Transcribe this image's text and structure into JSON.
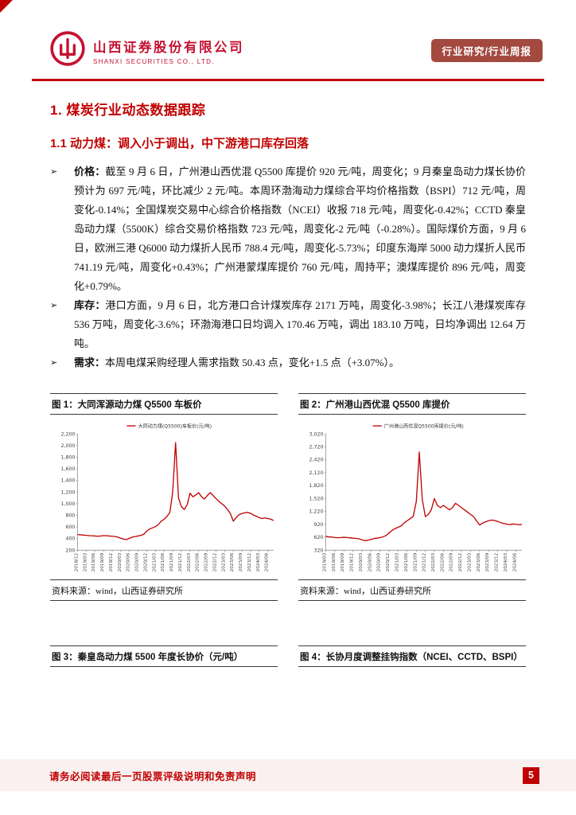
{
  "header": {
    "company_cn": "山西证券股份有限公司",
    "company_en": "SHANXI SECURITIES CO., LTD.",
    "badge": "行业研究/行业周报"
  },
  "section": {
    "title": "1. 煤炭行业动态数据跟踪",
    "subtitle": "1.1 动力煤：调入小于调出，中下游港口库存回落"
  },
  "bullets": [
    {
      "label": "价格：",
      "text": "截至 9 月 6 日，广州港山西优混 Q5500 库提价 920 元/吨，周变化；9 月秦皇岛动力煤长协价预计为 697 元/吨，环比减少 2 元/吨。本周环渤海动力煤综合平均价格指数（BSPI）712 元/吨，周变化-0.14%；全国煤炭交易中心综合价格指数（NCEI）收报 718 元/吨，周变化-0.42%；CCTD 秦皇岛动力煤（5500K）综合交易价格指数 723 元/吨，周变化-2 元/吨（-0.28%）。国际煤价方面，9 月 6 日，欧洲三港 Q6000 动力煤折人民币 788.4 元/吨，周变化-5.73%；印度东海岸 5000 动力煤折人民币 741.19 元/吨，周变化+0.43%；广州港蒙煤库提价 760 元/吨，周持平；澳煤库提价 896 元/吨，周变化+0.79%。"
    },
    {
      "label": "库存：",
      "text": "港口方面，9 月 6 日，北方港口合计煤炭库存 2171 万吨，周变化-3.98%；长江八港煤炭库存 536 万吨，周变化-3.6%；环渤海港口日均调入 170.46 万吨，调出 183.10 万吨，日均净调出 12.64 万吨。"
    },
    {
      "label": "需求：",
      "text": "本周电煤采购经理人需求指数 50.43 点，变化+1.5 点（+3.07%）。"
    }
  ],
  "figures": {
    "fig1_title": "图 1：大同浑源动力煤 Q5500 车板价",
    "fig2_title": "图 2：广州港山西优混 Q5500 库提价",
    "fig3_title": "图 3：秦皇岛动力煤 5500 年度长协价（元/吨）",
    "fig4_title": "图 4：长协月度调整挂钩指数（NCEI、CCTD、BSPI）",
    "source": "资料来源：wind，山西证券研究所"
  },
  "footer": {
    "disclaimer": "请务必阅读最后一页股票评级说明和免责声明",
    "page_number": "5"
  },
  "colors": {
    "brand_red": "#C00000",
    "logo_red": "#C41230",
    "badge_bg": "#A3493F",
    "line_red": "#C00000",
    "footer_band": "#FAF0F0"
  },
  "chart_data": [
    {
      "type": "line",
      "title": "图 1：大同浑源动力煤 Q5500 车板价",
      "legend": "大同动力煤(Q5500)车板价(元/吨)",
      "ylabel": "元/吨",
      "ylim": [
        200,
        2200
      ],
      "yticks": [
        200,
        400,
        600,
        800,
        1000,
        1200,
        1400,
        1600,
        1800,
        2000,
        2200
      ],
      "tick_step": 3,
      "x_tick_labels": [
        "2018/12",
        "2019/03",
        "2019/06",
        "2019/09",
        "2019/12",
        "2020/03",
        "2020/06",
        "2020/09",
        "2020/12",
        "2021/03",
        "2021/06",
        "2021/09",
        "2021/12",
        "2022/03",
        "2022/06",
        "2022/09",
        "2022/12",
        "2023/03",
        "2023/06",
        "2023/09",
        "2023/12",
        "2024/03",
        "2024/06"
      ],
      "values": [
        470,
        465,
        460,
        455,
        450,
        448,
        445,
        440,
        445,
        450,
        448,
        445,
        440,
        435,
        425,
        405,
        390,
        385,
        405,
        425,
        435,
        445,
        455,
        475,
        530,
        565,
        585,
        605,
        640,
        700,
        730,
        780,
        850,
        1200,
        2050,
        1100,
        950,
        900,
        980,
        1180,
        1120,
        1150,
        1190,
        1120,
        1080,
        1140,
        1190,
        1140,
        1090,
        1040,
        1000,
        960,
        900,
        830,
        700,
        760,
        810,
        830,
        845,
        850,
        835,
        805,
        785,
        760,
        745,
        755,
        745,
        735,
        710
      ]
    },
    {
      "type": "line",
      "title": "图 2：广州港山西优混 Q5500 库提价",
      "legend": "广州港山西优混Q5500库提价(元/吨)",
      "ylabel": "元/吨",
      "ylim": [
        320,
        3020
      ],
      "yticks": [
        320,
        620,
        920,
        1220,
        1520,
        1820,
        2120,
        2420,
        2720,
        3020
      ],
      "tick_step": 3,
      "x_tick_labels": [
        "2019/03",
        "2019/06",
        "2019/09",
        "2019/12",
        "2020/03",
        "2020/06",
        "2020/09",
        "2020/12",
        "2021/03",
        "2021/06",
        "2021/09",
        "2021/12",
        "2022/03",
        "2022/06",
        "2022/09",
        "2022/12",
        "2023/03",
        "2023/06",
        "2023/09",
        "2023/12",
        "2024/03",
        "2024/06"
      ],
      "values": [
        640,
        630,
        625,
        615,
        610,
        615,
        620,
        615,
        608,
        600,
        595,
        585,
        560,
        540,
        552,
        572,
        592,
        602,
        612,
        632,
        662,
        722,
        782,
        822,
        852,
        885,
        955,
        1005,
        1055,
        1105,
        1450,
        2600,
        1500,
        1100,
        1150,
        1260,
        1520,
        1360,
        1310,
        1360,
        1310,
        1260,
        1310,
        1410,
        1360,
        1310,
        1255,
        1205,
        1150,
        1100,
        1000,
        905,
        950,
        980,
        1005,
        1020,
        1010,
        990,
        960,
        940,
        925,
        912,
        930,
        922,
        912,
        920
      ]
    }
  ]
}
